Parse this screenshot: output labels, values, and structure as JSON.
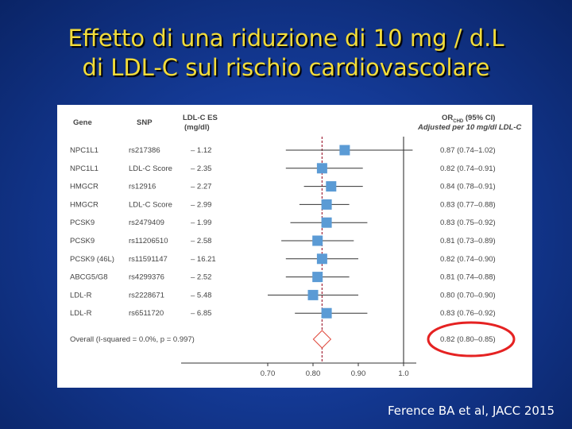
{
  "slide": {
    "title_line1": "Effetto di una riduzione di 10 mg / d.L",
    "title_line2": "di LDL-C sul rischio cardiovascolare",
    "citation": "Ference BA et al, JACC 2015"
  },
  "table": {
    "header_gene": "Gene",
    "header_snp": "SNP",
    "header_es_line1": "LDL-C ES",
    "header_es_line2": "(mg/dl)",
    "header_or_main": "OR",
    "header_or_sub": "CHD",
    "header_or_rest": " (95% CI)",
    "header_or_line2": "Adjusted per 10 mg/dl LDL-C",
    "overall_label": "Overall (I-squared = 0.0%, p = 0.997)",
    "overall_ci": "0.82 (0.80–0.85)"
  },
  "colors": {
    "marker": "#5b9bd5",
    "overall_diamond": "#e0483c",
    "highlight_ellipse": "#e52222",
    "reference_dash": "#a4283c",
    "title_yellow": "#f2dc3a"
  },
  "chart_data": {
    "type": "forest",
    "xlim": [
      0.65,
      1.1
    ],
    "x_ticks": [
      "0.70",
      "0.80",
      "0.90",
      "1.0"
    ],
    "x_tick_values": [
      0.7,
      0.8,
      0.9,
      1.0
    ],
    "null_line": 1.0,
    "pooled_estimate": 0.82,
    "rows": [
      {
        "gene": "NPC1L1",
        "snp": "rs217386",
        "es": "– 1.12",
        "or": 0.87,
        "lo": 0.74,
        "hi": 1.02,
        "label": "0.87 (0.74–1.02)"
      },
      {
        "gene": "NPC1L1",
        "snp": "LDL-C Score",
        "es": "– 2.35",
        "or": 0.82,
        "lo": 0.74,
        "hi": 0.91,
        "label": "0.82 (0.74–0.91)"
      },
      {
        "gene": "HMGCR",
        "snp": "rs12916",
        "es": "– 2.27",
        "or": 0.84,
        "lo": 0.78,
        "hi": 0.91,
        "label": "0.84 (0.78–0.91)"
      },
      {
        "gene": "HMGCR",
        "snp": "LDL-C Score",
        "es": "– 2.99",
        "or": 0.83,
        "lo": 0.77,
        "hi": 0.88,
        "label": "0.83 (0.77–0.88)"
      },
      {
        "gene": "PCSK9",
        "snp": "rs2479409",
        "es": "– 1.99",
        "or": 0.83,
        "lo": 0.75,
        "hi": 0.92,
        "label": "0.83 (0.75–0.92)"
      },
      {
        "gene": "PCSK9",
        "snp": "rs11206510",
        "es": "– 2.58",
        "or": 0.81,
        "lo": 0.73,
        "hi": 0.89,
        "label": "0.81 (0.73–0.89)"
      },
      {
        "gene": "PCSK9 (46L)",
        "snp": "rs11591147",
        "es": "– 16.21",
        "or": 0.82,
        "lo": 0.74,
        "hi": 0.9,
        "label": "0.82 (0.74–0.90)"
      },
      {
        "gene": "ABCG5/G8",
        "snp": "rs4299376",
        "es": "– 2.52",
        "or": 0.81,
        "lo": 0.74,
        "hi": 0.88,
        "label": "0.81 (0.74–0.88)"
      },
      {
        "gene": "LDL-R",
        "snp": "rs2228671",
        "es": "– 5.48",
        "or": 0.8,
        "lo": 0.7,
        "hi": 0.9,
        "label": "0.80 (0.70–0.90)"
      },
      {
        "gene": "LDL-R",
        "snp": "rs6511720",
        "es": "– 6.85",
        "or": 0.83,
        "lo": 0.76,
        "hi": 0.92,
        "label": "0.83 (0.76–0.92)"
      }
    ],
    "overall": {
      "or": 0.82,
      "lo": 0.8,
      "hi": 0.85
    }
  }
}
